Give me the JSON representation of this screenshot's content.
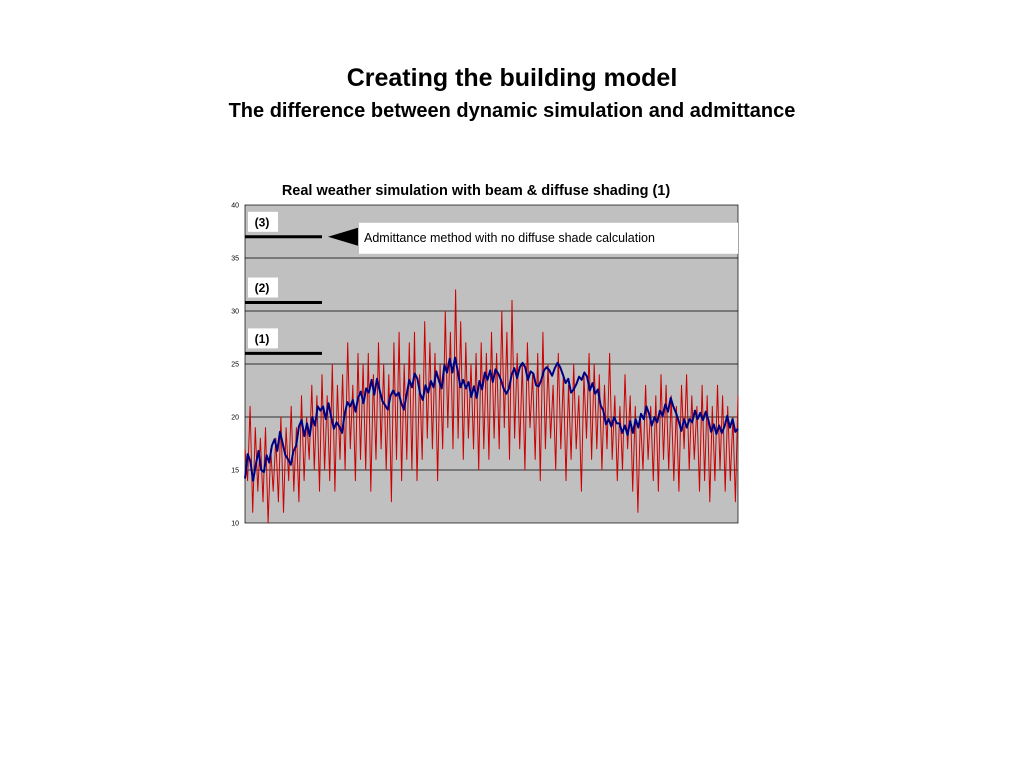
{
  "slide": {
    "title": "Creating the building model",
    "subtitle": "The difference between dynamic simulation and admittance"
  },
  "chart_data": {
    "type": "line",
    "title": "Real weather simulation with beam & diffuse shading (1)",
    "xlabel": "",
    "ylabel": "",
    "ylim": [
      10,
      40
    ],
    "yticks": [
      10,
      15,
      20,
      25,
      30,
      35,
      40
    ],
    "grid": true,
    "plot_background": "#c0c0c0",
    "x_range": [
      0,
      192
    ],
    "series": [
      {
        "color": "#cc0000",
        "values": [
          17,
          14,
          21,
          11,
          19,
          13,
          18,
          12,
          19,
          10,
          17,
          13,
          18,
          12,
          20,
          11,
          19,
          14,
          21,
          13,
          19,
          12,
          22,
          14,
          20,
          16,
          23,
          15,
          22,
          13,
          24,
          15,
          22,
          14,
          25,
          13,
          23,
          16,
          24,
          15,
          27,
          17,
          23,
          14,
          26,
          16,
          25,
          15,
          26,
          13,
          24,
          16,
          27,
          17,
          25,
          15,
          24,
          12,
          27,
          16,
          28,
          14,
          25,
          16,
          27,
          15,
          28,
          14,
          24,
          16,
          29,
          18,
          27,
          17,
          26,
          14,
          25,
          17,
          30,
          19,
          28,
          17,
          32,
          18,
          29,
          16,
          27,
          18,
          25,
          17,
          26,
          15,
          27,
          17,
          26,
          16,
          28,
          18,
          26,
          17,
          30,
          19,
          28,
          16,
          31,
          18,
          26,
          17,
          25,
          15,
          27,
          19,
          24,
          16,
          26,
          14,
          28,
          17,
          25,
          18,
          23,
          15,
          26,
          17,
          24,
          14,
          23,
          16,
          25,
          17,
          22,
          13,
          24,
          18,
          26,
          16,
          25,
          17,
          24,
          15,
          23,
          17,
          26,
          16,
          22,
          14,
          21,
          15,
          24,
          17,
          22,
          13,
          21,
          11,
          20,
          15,
          23,
          16,
          21,
          14,
          22,
          13,
          24,
          16,
          23,
          15,
          22,
          14,
          21,
          13,
          23,
          17,
          24,
          15,
          22,
          16,
          21,
          13,
          23,
          14,
          22,
          12,
          21,
          14,
          23,
          15,
          22,
          13,
          21,
          14,
          20,
          12,
          22
        ]
      },
      {
        "color": "#000080",
        "values": [
          14.2,
          16.5,
          15.8,
          14,
          15.5,
          16.8,
          15,
          14.8,
          16.4,
          15.7,
          17.3,
          17.9,
          16.8,
          18.6,
          17.5,
          16.4,
          16,
          15.5,
          16.8,
          17.3,
          19.1,
          19.7,
          18.2,
          19.4,
          18.2,
          20,
          19.2,
          21,
          20.6,
          21,
          19.8,
          21.3,
          20,
          18.9,
          19.5,
          19.1,
          18.5,
          20.3,
          21.4,
          21,
          21.6,
          20.5,
          21.8,
          22.4,
          21.3,
          22.7,
          22.3,
          23.5,
          22.1,
          23.6,
          22.5,
          21.5,
          21.1,
          20.7,
          22,
          22.5,
          22,
          22.3,
          21.3,
          20.7,
          22.1,
          23.5,
          22.8,
          24.1,
          23.6,
          22.2,
          21.6,
          23,
          22.3,
          23.4,
          22.8,
          24.3,
          23.4,
          22.7,
          24.9,
          24.2,
          25.5,
          24.2,
          25.6,
          24.3,
          22.8,
          23.5,
          22.7,
          23.3,
          21.9,
          22.9,
          21.8,
          23.4,
          22.6,
          24.2,
          23.5,
          24.4,
          23.3,
          24.5,
          24.1,
          23.5,
          22.7,
          22.2,
          22.7,
          24,
          24.6,
          23.7,
          24.7,
          25.1,
          24.7,
          23.5,
          24.3,
          24.1,
          23,
          22.9,
          23.5,
          24.4,
          24.7,
          24.4,
          23.9,
          24.6,
          25.1,
          24.7,
          24,
          23.2,
          23.6,
          22.3,
          22.6,
          23.1,
          23.8,
          23.5,
          24.2,
          23.8,
          22.5,
          23.2,
          22.2,
          22.6,
          21.1,
          20.6,
          19.3,
          19.8,
          19.1,
          20,
          19.4,
          19.4,
          18.5,
          19.2,
          18.3,
          19.6,
          18.5,
          19.8,
          19,
          20.3,
          19.8,
          21,
          20.3,
          19.2,
          20,
          19.5,
          20.6,
          20.1,
          21.2,
          20.5,
          21.8,
          21,
          20.4,
          19.6,
          18.7,
          19.8,
          19,
          19.8,
          19.5,
          20.6,
          19.8,
          20.4,
          19.7,
          20.5,
          19.7,
          18.6,
          19.3,
          18.4,
          19.2,
          18.5,
          19.1,
          20.1,
          19,
          19.8,
          18.6,
          18.9
        ]
      }
    ],
    "annotations": [
      {
        "label": "(3)",
        "level": 37
      },
      {
        "label": "(2)",
        "level": 30.8
      },
      {
        "label": "(1)",
        "level": 26
      }
    ],
    "callout": "Admittance method with no diffuse shade calculation"
  }
}
